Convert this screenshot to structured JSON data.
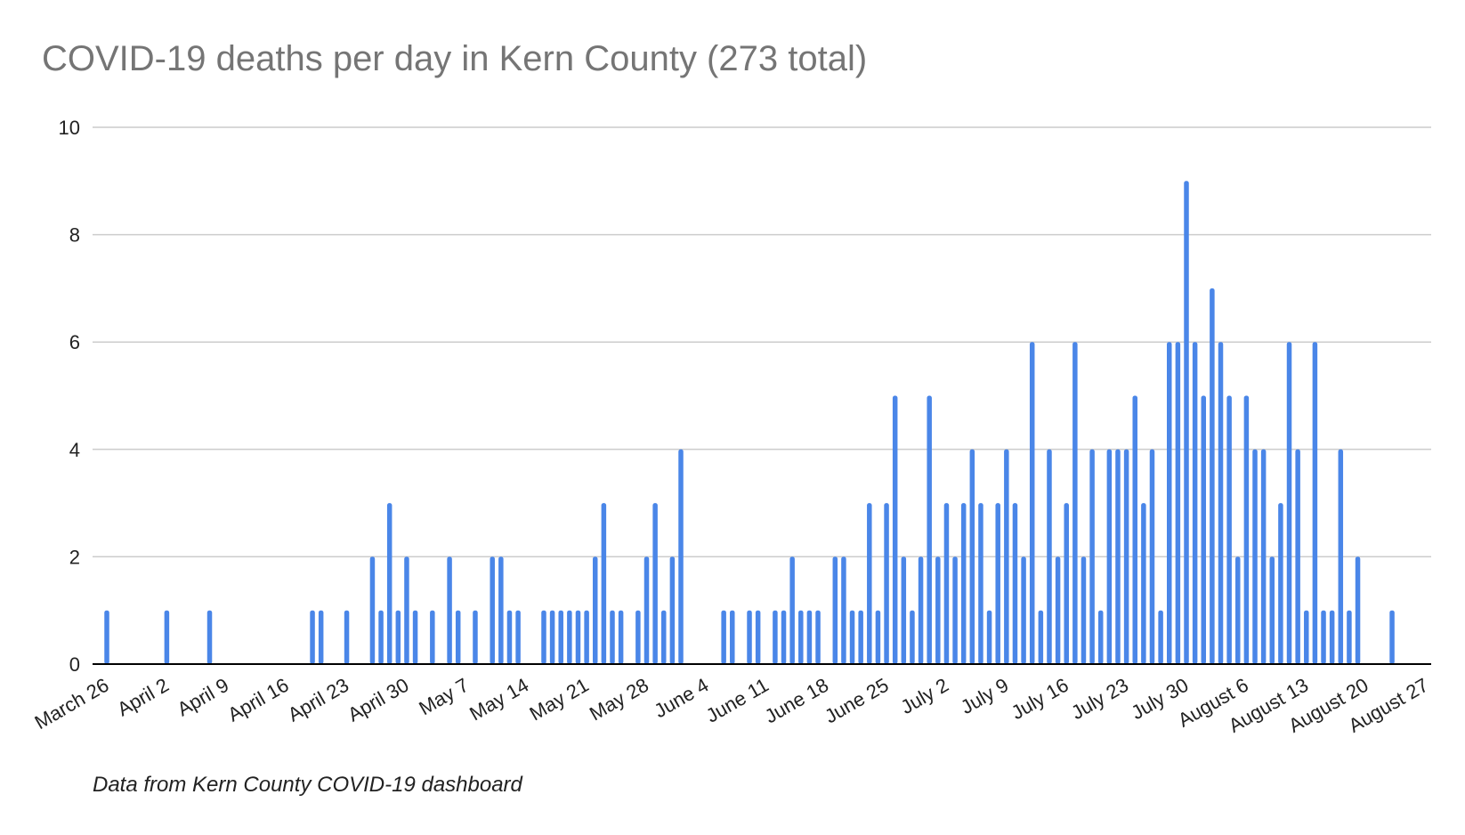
{
  "title": "COVID-19 deaths per day in Kern County (273 total)",
  "source_note": "Data from Kern County COVID-19 dashboard",
  "colors": {
    "bar": "#4a86e8",
    "grid": "#cccccc",
    "axis": "#000000",
    "title": "#757575",
    "text": "#222222"
  },
  "chart_data": {
    "type": "bar",
    "title": "COVID-19 deaths per day in Kern County (273 total)",
    "xlabel": "",
    "ylabel": "",
    "ylim": [
      0,
      10
    ],
    "yticks": [
      0,
      2,
      4,
      6,
      8,
      10
    ],
    "grid": true,
    "legend": "none",
    "x_tick_labels": [
      "March 26",
      "April 2",
      "April 9",
      "April 16",
      "April 23",
      "April 30",
      "May 7",
      "May 14",
      "May 21",
      "May 28",
      "June 4",
      "June 11",
      "June 18",
      "June 25",
      "July 2",
      "July 9",
      "July 16",
      "July 23",
      "July 30",
      "August 6",
      "August 13",
      "August 20",
      "August 27"
    ],
    "x_start": "March 26",
    "values": [
      1,
      0,
      0,
      0,
      0,
      0,
      0,
      1,
      0,
      0,
      0,
      0,
      1,
      0,
      0,
      0,
      0,
      0,
      0,
      0,
      0,
      0,
      0,
      0,
      1,
      1,
      0,
      0,
      1,
      0,
      0,
      2,
      1,
      3,
      1,
      2,
      1,
      0,
      1,
      0,
      2,
      1,
      0,
      1,
      0,
      2,
      2,
      1,
      1,
      0,
      0,
      1,
      1,
      1,
      1,
      1,
      1,
      2,
      3,
      1,
      1,
      0,
      1,
      2,
      3,
      1,
      2,
      4,
      0,
      0,
      0,
      0,
      1,
      1,
      0,
      1,
      1,
      0,
      1,
      1,
      2,
      1,
      1,
      1,
      0,
      2,
      2,
      1,
      1,
      3,
      1,
      3,
      5,
      2,
      1,
      2,
      5,
      2,
      3,
      2,
      3,
      4,
      3,
      1,
      3,
      4,
      3,
      2,
      6,
      1,
      4,
      2,
      3,
      6,
      2,
      4,
      1,
      4,
      4,
      4,
      5,
      3,
      4,
      1,
      6,
      6,
      9,
      6,
      5,
      7,
      6,
      5,
      2,
      5,
      4,
      4,
      2,
      3,
      6,
      4,
      1,
      6,
      1,
      1,
      4,
      1,
      2,
      0,
      0,
      0,
      1
    ]
  }
}
